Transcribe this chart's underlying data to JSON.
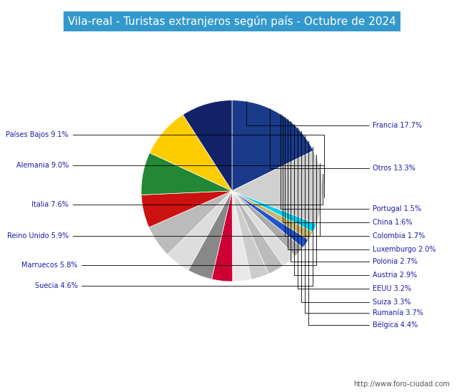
{
  "title": "Vila-real - Turistas extranjeros según país - Octubre de 2024",
  "title_bg_color": "#3399cc",
  "title_text_color": "white",
  "footer": "http://www.foro-ciudad.com",
  "background_color": "white",
  "slices": [
    {
      "label": "Francia",
      "pct": 17.7,
      "color": "#1a3a8a"
    },
    {
      "label": "Otros",
      "pct": 13.3,
      "color": "#d0d0d0"
    },
    {
      "label": "Portugal",
      "pct": 1.5,
      "color": "#00ccee"
    },
    {
      "label": "China",
      "pct": 1.6,
      "color": "#c8b870"
    },
    {
      "label": "Colombia",
      "pct": 1.7,
      "color": "#2255cc"
    },
    {
      "label": "Luxemburgo",
      "pct": 2.0,
      "color": "#aaaaaa"
    },
    {
      "label": "Polonia",
      "pct": 2.7,
      "color": "#dddddd"
    },
    {
      "label": "Austria",
      "pct": 2.9,
      "color": "#bbbbbb"
    },
    {
      "label": "EEUU",
      "pct": 3.2,
      "color": "#cccccc"
    },
    {
      "label": "Suiza",
      "pct": 3.3,
      "color": "#e8e8e8"
    },
    {
      "label": "Rumanía",
      "pct": 3.7,
      "color": "#cc0033"
    },
    {
      "label": "Bélgica",
      "pct": 4.4,
      "color": "#888888"
    },
    {
      "label": "Suecia",
      "pct": 4.6,
      "color": "#dddddd"
    },
    {
      "label": "Marruecos",
      "pct": 5.8,
      "color": "#bbbbbb"
    },
    {
      "label": "Reino Unido",
      "pct": 5.9,
      "color": "#cc1111"
    },
    {
      "label": "Italia",
      "pct": 7.6,
      "color": "#228833"
    },
    {
      "label": "Alemania",
      "pct": 9.0,
      "color": "#ffcc00"
    },
    {
      "label": "Países Bajos",
      "pct": 9.1,
      "color": "#112266"
    }
  ],
  "label_color": "#1a1aaa",
  "line_color": "black",
  "figsize": [
    6.5,
    5.5
  ],
  "dpi": 100
}
